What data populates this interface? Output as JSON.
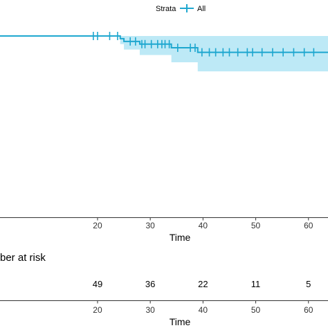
{
  "chart_data": {
    "type": "line",
    "legend": {
      "title": "Strata",
      "entries": [
        "All"
      ],
      "placement": "top"
    },
    "xlabel": "Time",
    "xticks": [
      20,
      30,
      40,
      50,
      60
    ],
    "xlim": [
      1.5,
      62
    ],
    "ylim": [
      0,
      1
    ],
    "color": "#1ea7cf",
    "band_color": "#bde9f6",
    "survival_steps": [
      {
        "x": 0,
        "y": 1.0,
        "lower": 1.0,
        "upper": 1.0
      },
      {
        "x": 24.3,
        "y": 0.985,
        "lower": 0.955,
        "upper": 1.0
      },
      {
        "x": 25.0,
        "y": 0.97,
        "lower": 0.925,
        "upper": 1.0
      },
      {
        "x": 28.0,
        "y": 0.955,
        "lower": 0.895,
        "upper": 1.0
      },
      {
        "x": 34.0,
        "y": 0.935,
        "lower": 0.855,
        "upper": 1.0
      },
      {
        "x": 39.0,
        "y": 0.91,
        "lower": 0.805,
        "upper": 1.0
      },
      {
        "x": 62.0,
        "y": 0.91,
        "lower": 0.805,
        "upper": 1.0
      }
    ],
    "censor_times": [
      19.2,
      20.0,
      22.3,
      23.8,
      26.2,
      27.2,
      28.4,
      29.0,
      30.2,
      31.4,
      32.2,
      32.8,
      33.6,
      35.2,
      37.6,
      38.5,
      39.8,
      41.2,
      42.4,
      43.8,
      45.0,
      46.6,
      48.4,
      49.4,
      51.2,
      53.2,
      55.2,
      57.2,
      59.2,
      61.0
    ],
    "risk_table": {
      "title": "ber at risk",
      "times": [
        20,
        30,
        40,
        50,
        60
      ],
      "counts": [
        "49",
        "36",
        "22",
        "11",
        "5"
      ],
      "xlabel": "Time"
    }
  }
}
